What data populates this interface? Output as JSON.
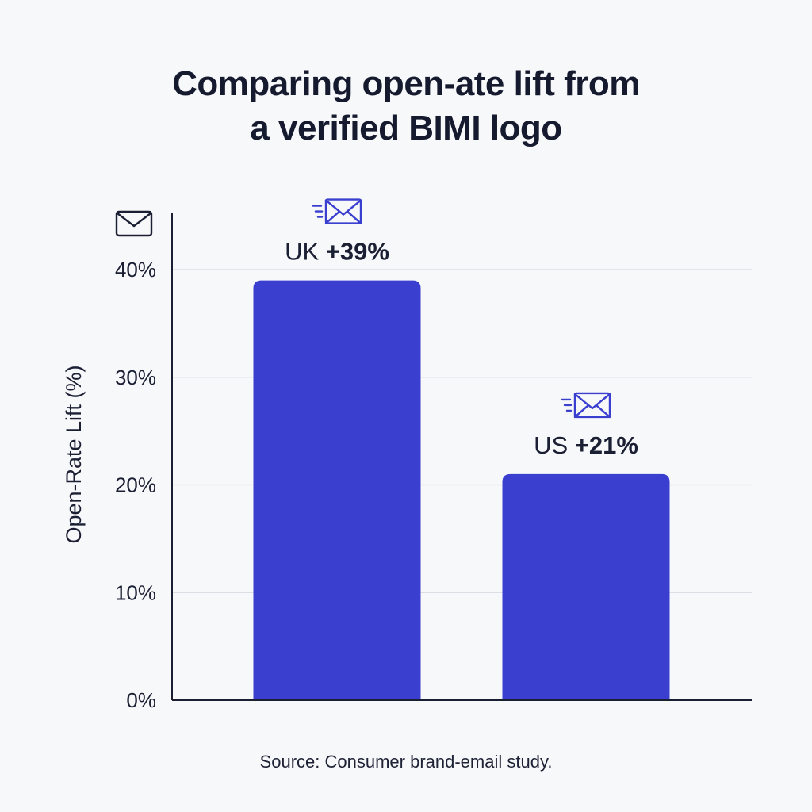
{
  "title_lines": [
    "Comparing open-ate lift from",
    "a verified BIMI logo"
  ],
  "source": "Source: Consumer brand-email study.",
  "colors": {
    "bar": "#3b3fcf",
    "axis": "#1b1f33",
    "grid": "#d9dbe3",
    "icon": "#3b3fcf",
    "text": "#1b1f33"
  },
  "icons": {
    "axis_icon": "envelope-icon",
    "label_icon": "fast-mail-icon"
  },
  "chart_data": {
    "type": "bar",
    "title": "Comparing open-ate lift from a verified BIMI logo",
    "xlabel": "",
    "ylabel": "Open-Rate Lift (%)",
    "categories": [
      "UK",
      "US"
    ],
    "values": [
      39,
      21
    ],
    "data_labels": [
      {
        "country": "UK",
        "value": "+39%"
      },
      {
        "country": "US",
        "value": "+21%"
      }
    ],
    "ylim": [
      0,
      40
    ],
    "yticks": [
      0,
      10,
      20,
      30,
      40
    ],
    "ytick_labels": [
      "0%",
      "10%",
      "20%",
      "30%",
      "40%"
    ],
    "grid": true,
    "legend": "none"
  }
}
